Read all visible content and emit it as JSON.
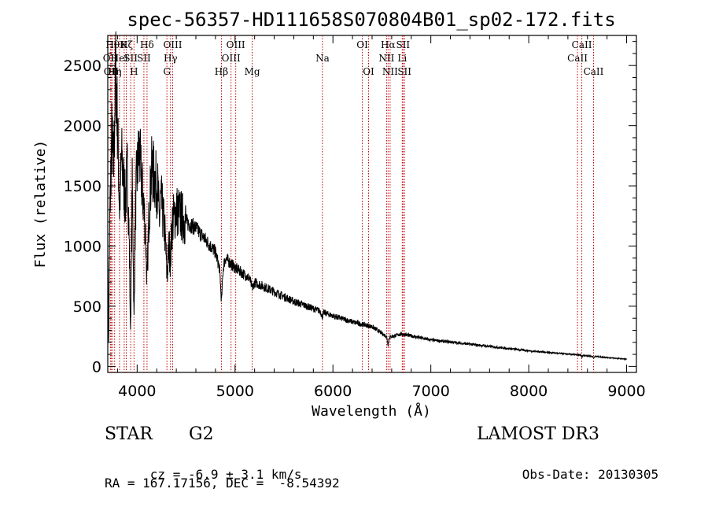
{
  "chart_data": {
    "type": "line",
    "title": "spec-56357-HD111658S070804B01_sp02-172.fits",
    "xlabel": "Wavelength (Å)",
    "ylabel": "Flux (relative)",
    "xlim": [
      3700,
      9100
    ],
    "ylim": [
      -50,
      2750
    ],
    "xticks": [
      4000,
      5000,
      6000,
      7000,
      8000,
      9000
    ],
    "yticks": [
      0,
      500,
      1000,
      1500,
      2000,
      2500
    ],
    "spectrum_anchors": [
      [
        3700,
        900
      ],
      [
        3710,
        200
      ],
      [
        3720,
        1200
      ],
      [
        3740,
        1900
      ],
      [
        3760,
        1650
      ],
      [
        3780,
        2500
      ],
      [
        3800,
        2000
      ],
      [
        3820,
        1300
      ],
      [
        3840,
        1750
      ],
      [
        3860,
        1550
      ],
      [
        3880,
        1350
      ],
      [
        3900,
        1650
      ],
      [
        3930,
        700
      ],
      [
        3950,
        1500
      ],
      [
        3968,
        750
      ],
      [
        3990,
        1500
      ],
      [
        4020,
        1800
      ],
      [
        4050,
        1500
      ],
      [
        4101,
        1000
      ],
      [
        4150,
        1650
      ],
      [
        4200,
        1500
      ],
      [
        4250,
        1350
      ],
      [
        4300,
        1000
      ],
      [
        4340,
        1150
      ],
      [
        4400,
        1300
      ],
      [
        4500,
        1200
      ],
      [
        4600,
        1150
      ],
      [
        4700,
        1050
      ],
      [
        4800,
        950
      ],
      [
        4861,
        750
      ],
      [
        4900,
        900
      ],
      [
        5000,
        820
      ],
      [
        5100,
        760
      ],
      [
        5200,
        700
      ],
      [
        5400,
        620
      ],
      [
        5600,
        540
      ],
      [
        5800,
        480
      ],
      [
        6000,
        420
      ],
      [
        6200,
        370
      ],
      [
        6400,
        330
      ],
      [
        6563,
        240
      ],
      [
        6700,
        270
      ],
      [
        7000,
        220
      ],
      [
        7500,
        175
      ],
      [
        8000,
        130
      ],
      [
        8500,
        95
      ],
      [
        9000,
        60
      ]
    ],
    "absorption_dips": [
      [
        3934,
        450,
        6
      ],
      [
        3968,
        350,
        6
      ],
      [
        4101,
        300,
        8
      ],
      [
        4226,
        200,
        6
      ],
      [
        4308,
        250,
        10
      ],
      [
        4340,
        250,
        8
      ],
      [
        4861,
        200,
        8
      ],
      [
        5175,
        60,
        12
      ],
      [
        5890,
        40,
        8
      ],
      [
        6563,
        60,
        6
      ],
      [
        8542,
        15,
        5
      ],
      [
        8662,
        15,
        5
      ]
    ],
    "noise": {
      "seed": 7,
      "amplitude_fraction": 0.06
    },
    "line_markers": [
      {
        "wl": 3727,
        "label": "OII",
        "row": 1
      },
      {
        "wl": 3735,
        "label": "OII",
        "row": 2
      },
      {
        "wl": 3750,
        "label": "Hθ",
        "row": 0
      },
      {
        "wl": 3770,
        "label": "Hη",
        "row": 2
      },
      {
        "wl": 3820,
        "label": "HeI",
        "row": 1
      },
      {
        "wl": 3868,
        "label": "K",
        "row": 0
      },
      {
        "wl": 3889,
        "label": "Hζ",
        "row": 0
      },
      {
        "wl": 3934,
        "label": "SII",
        "row": 1
      },
      {
        "wl": 3968,
        "label": "H",
        "row": 2
      },
      {
        "wl": 4101,
        "label": "Hδ",
        "row": 0
      },
      {
        "wl": 4069,
        "label": "SII",
        "row": 1
      },
      {
        "wl": 4304,
        "label": "G",
        "row": 2
      },
      {
        "wl": 4341,
        "label": "Hγ",
        "row": 1
      },
      {
        "wl": 4363,
        "label": "OIII",
        "row": 0
      },
      {
        "wl": 4861,
        "label": "Hβ",
        "row": 2
      },
      {
        "wl": 4959,
        "label": "OIII",
        "row": 1
      },
      {
        "wl": 5007,
        "label": "OIII",
        "row": 0
      },
      {
        "wl": 5175,
        "label": "Mg",
        "row": 2
      },
      {
        "wl": 5893,
        "label": "Na",
        "row": 1
      },
      {
        "wl": 6300,
        "label": "OI",
        "row": 0
      },
      {
        "wl": 6364,
        "label": "OI",
        "row": 2
      },
      {
        "wl": 6548,
        "label": "NII",
        "row": 1
      },
      {
        "wl": 6563,
        "label": "Hα",
        "row": 0
      },
      {
        "wl": 6584,
        "label": "NII",
        "row": 2
      },
      {
        "wl": 6708,
        "label": "Li",
        "row": 1
      },
      {
        "wl": 6716,
        "label": "SII",
        "row": 0
      },
      {
        "wl": 6731,
        "label": "SII",
        "row": 2
      },
      {
        "wl": 8498,
        "label": "CaII",
        "row": 1
      },
      {
        "wl": 8542,
        "label": "CaII",
        "row": 0
      },
      {
        "wl": 8662,
        "label": "CaII",
        "row": 2
      }
    ],
    "colors": {
      "spectrum": "#000000",
      "marker": "#c00000",
      "axes": "#000000"
    }
  },
  "info": {
    "object_class": "STAR",
    "subclass": "G2",
    "survey": "LAMOST DR3",
    "cz_label": "cz = ",
    "cz_value": "-6.9 ± 3.1 km/s",
    "obs_date_label": "Obs-Date: ",
    "obs_date": "20130305",
    "coords": "RA = 167.17156, DEC =  -8.54392"
  }
}
